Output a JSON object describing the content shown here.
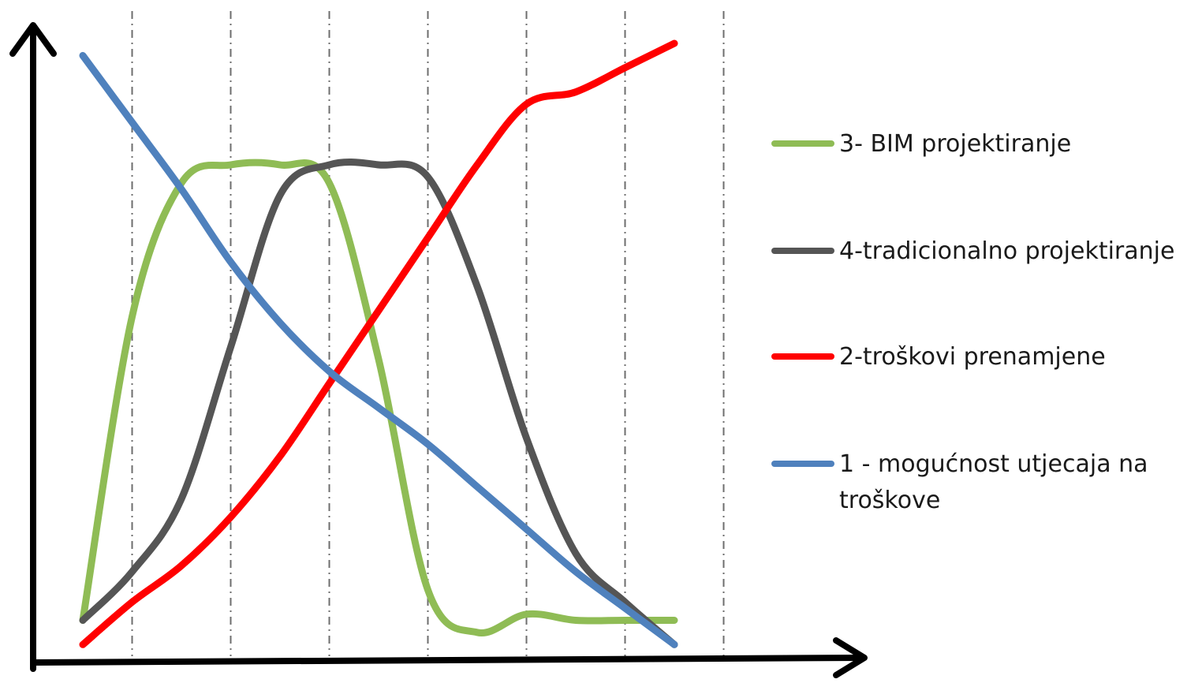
{
  "chart_data": {
    "type": "line",
    "title": "",
    "xlabel": "",
    "ylabel": "",
    "grid": "vertical dash-dot lines",
    "legend_position": "right",
    "x": [
      0,
      0.5,
      1,
      1.5,
      2,
      2.5,
      3,
      3.5,
      4,
      4.5,
      5,
      5.5,
      6
    ],
    "xlim": [
      -0.5,
      6.6
    ],
    "ylim": [
      0,
      100
    ],
    "series": [
      {
        "name": "3- BIM projektiranje",
        "color": "#8fbc55",
        "values": [
          5,
          55,
          77,
          80,
          80,
          77,
          48,
          10,
          3,
          6,
          5,
          5,
          5
        ]
      },
      {
        "name": "4-tradicionalno projektiranje",
        "color": "#555555",
        "values": [
          5,
          13,
          25,
          50,
          75,
          80,
          80,
          78,
          60,
          35,
          16,
          8,
          1
        ]
      },
      {
        "name": "2-troškovi prenamjene",
        "color": "#ff0000",
        "values": [
          1,
          8,
          14,
          22,
          32,
          44,
          56,
          68,
          80,
          90,
          92,
          96,
          100
        ]
      },
      {
        "name": "1 - mogućnost utjecaja na troškove",
        "color": "#4f81bd",
        "values": [
          98,
          87,
          76,
          64,
          54,
          46,
          40,
          34,
          27,
          20,
          13,
          7,
          1
        ]
      }
    ]
  }
}
